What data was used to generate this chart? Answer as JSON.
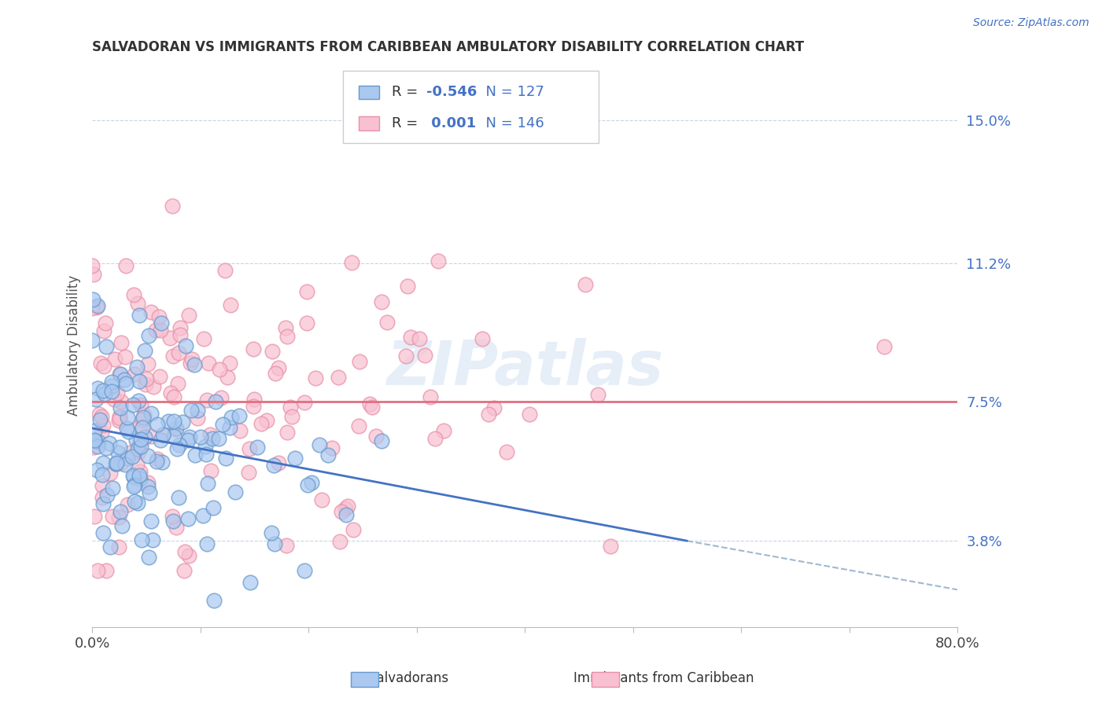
{
  "title": "SALVADORAN VS IMMIGRANTS FROM CARIBBEAN AMBULATORY DISABILITY CORRELATION CHART",
  "source": "Source: ZipAtlas.com",
  "ylabel": "Ambulatory Disability",
  "yticks": [
    3.8,
    7.5,
    11.2,
    15.0
  ],
  "ytick_labels": [
    "3.8%",
    "7.5%",
    "11.2%",
    "15.0%"
  ],
  "xlim": [
    0.0,
    80.0
  ],
  "ylim": [
    1.5,
    16.5
  ],
  "r_salvadoran": -0.546,
  "n_salvadoran": 127,
  "r_caribbean": 0.001,
  "n_caribbean": 146,
  "color_salvadoran_fill": "#aac8f0",
  "color_salvadoran_edge": "#6699cc",
  "color_caribbean_fill": "#f8c0d0",
  "color_caribbean_edge": "#e890a8",
  "color_salvadoran_line": "#4472c4",
  "color_caribbean_line": "#e07080",
  "color_dashed": "#a0b8d0",
  "watermark": "ZIPatlas",
  "legend_label_1": "Salvadorans",
  "legend_label_2": "Immigrants from Caribbean",
  "background_color": "#ffffff",
  "grid_color": "#c8d4e8",
  "sal_line_x0": 0.0,
  "sal_line_y0": 6.8,
  "sal_line_x1": 55.0,
  "sal_line_y1": 3.8,
  "car_line_x0": 0.0,
  "car_line_y0": 7.5,
  "car_line_x1": 80.0,
  "car_line_y1": 7.5,
  "dash_line_x0": 55.0,
  "dash_line_y0": 3.8,
  "dash_line_x1": 80.0,
  "dash_line_y1": 2.5
}
